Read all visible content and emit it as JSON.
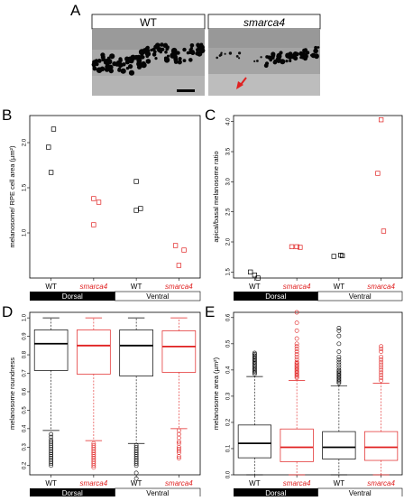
{
  "panel_labels": [
    "A",
    "B",
    "C",
    "D",
    "E"
  ],
  "panel_a": {
    "titles": [
      "WT",
      "smarca4"
    ],
    "wt_color": "#000000",
    "mutant_color": "#000000"
  },
  "group_bar": {
    "dorsal": "Dorsal",
    "ventral": "Ventral"
  },
  "colors": {
    "wt": "#000000",
    "mutant": "#e02020",
    "dorsal_bar": "#000000"
  },
  "chart_data": [
    {
      "panel": "B",
      "type": "scatter",
      "ylabel": "melanosome/ RPE cell area (µm²)",
      "ylim": [
        0.5,
        2.3
      ],
      "yticks": [
        1.0,
        1.5,
        2.0
      ],
      "ytick_labels": [
        "1.0",
        "1.5",
        "2.0"
      ],
      "categories": [
        "WT",
        "smarca4",
        "WT",
        "smarca4"
      ],
      "groups": [
        "Dorsal",
        "Ventral"
      ],
      "series": [
        {
          "category": "WT",
          "values": [
            1.95,
            2.15,
            1.67
          ],
          "offsets": [
            -0.03,
            0.03,
            0.0
          ]
        },
        {
          "category": "smarca4",
          "values": [
            1.38,
            1.34,
            1.09
          ],
          "offsets": [
            0.0,
            0.06,
            0.0
          ]
        },
        {
          "category": "WT",
          "values": [
            1.57,
            1.25,
            1.27
          ],
          "offsets": [
            0.0,
            0.0,
            0.05
          ]
        },
        {
          "category": "smarca4",
          "values": [
            0.86,
            0.81,
            0.64
          ],
          "offsets": [
            -0.04,
            0.06,
            0.0
          ]
        }
      ]
    },
    {
      "panel": "C",
      "type": "scatter",
      "ylabel": "apical/basal melanosome ratio",
      "ylim": [
        1.4,
        4.1
      ],
      "yticks": [
        1.5,
        2.0,
        2.5,
        3.0,
        3.5,
        4.0
      ],
      "ytick_labels": [
        "1.5",
        "2.0",
        "2.5",
        "3.0",
        "3.5",
        "4.0"
      ],
      "categories": [
        "WT",
        "smarca4",
        "WT",
        "smarca4"
      ],
      "groups": [
        "Dorsal",
        "Ventral"
      ],
      "series": [
        {
          "category": "WT",
          "values": [
            1.5,
            1.45,
            1.4
          ],
          "offsets": [
            -0.05,
            0.0,
            0.04
          ]
        },
        {
          "category": "smarca4",
          "values": [
            1.92,
            1.92,
            1.91
          ],
          "offsets": [
            -0.06,
            0.0,
            0.04
          ]
        },
        {
          "category": "WT",
          "values": [
            1.76,
            1.78,
            1.77
          ],
          "offsets": [
            -0.06,
            0.02,
            0.04
          ]
        },
        {
          "category": "smarca4",
          "values": [
            4.03,
            3.14,
            2.18
          ],
          "offsets": [
            0.0,
            -0.04,
            0.03
          ]
        }
      ]
    },
    {
      "panel": "D",
      "type": "boxplot",
      "ylabel": "melanosome roundness",
      "ylim": [
        0.15,
        1.03
      ],
      "yticks": [
        0.2,
        0.3,
        0.4,
        0.5,
        0.6,
        0.7,
        0.8,
        0.9,
        1.0
      ],
      "ytick_labels": [
        "0.2",
        "0.3",
        "0.4",
        "0.5",
        "0.6",
        "0.7",
        "0.8",
        "0.9",
        "1.0"
      ],
      "categories": [
        "WT",
        "smarca4",
        "WT",
        "smarca4"
      ],
      "groups": [
        "Dorsal",
        "Ventral"
      ],
      "boxes": [
        {
          "category": "WT",
          "whisker_low": 0.39,
          "q1": 0.715,
          "median": 0.86,
          "q3": 0.935,
          "whisker_high": 1.0,
          "outliers": [
            0.37,
            0.355,
            0.34,
            0.33,
            0.32,
            0.31,
            0.3,
            0.29,
            0.28,
            0.27,
            0.26,
            0.25,
            0.24,
            0.23,
            0.22,
            0.21,
            0.2
          ]
        },
        {
          "category": "smarca4",
          "whisker_low": 0.335,
          "q1": 0.695,
          "median": 0.85,
          "q3": 0.935,
          "whisker_high": 1.0,
          "outliers": [
            0.32,
            0.31,
            0.3,
            0.29,
            0.28,
            0.27,
            0.26,
            0.25,
            0.24,
            0.23,
            0.22,
            0.21,
            0.2,
            0.19
          ]
        },
        {
          "category": "WT",
          "whisker_low": 0.32,
          "q1": 0.685,
          "median": 0.85,
          "q3": 0.935,
          "whisker_high": 1.0,
          "outliers": [
            0.31,
            0.3,
            0.29,
            0.28,
            0.27,
            0.26,
            0.25,
            0.24,
            0.23,
            0.22,
            0.21,
            0.2,
            0.16,
            0.13
          ]
        },
        {
          "category": "smarca4",
          "whisker_low": 0.4,
          "q1": 0.705,
          "median": 0.845,
          "q3": 0.93,
          "whisker_high": 1.0,
          "outliers": [
            0.39,
            0.37,
            0.35,
            0.33,
            0.32,
            0.3,
            0.29,
            0.28,
            0.27,
            0.25,
            0.24
          ]
        }
      ]
    },
    {
      "panel": "E",
      "type": "boxplot",
      "ylabel": "melanosome area (µm²)",
      "ylim": [
        0.0,
        0.62
      ],
      "yticks": [
        0.0,
        0.1,
        0.2,
        0.3,
        0.4,
        0.5,
        0.6
      ],
      "ytick_labels": [
        "0.0",
        "0.1",
        "0.2",
        "0.3",
        "0.4",
        "0.5",
        "0.6"
      ],
      "categories": [
        "WT",
        "smarca4",
        "WT",
        "smarca4"
      ],
      "groups": [
        "Dorsal",
        "Ventral"
      ],
      "boxes": [
        {
          "category": "WT",
          "whisker_low": 0.0,
          "q1": 0.065,
          "median": 0.12,
          "q3": 0.19,
          "whisker_high": 0.375,
          "outliers": [
            0.385,
            0.39,
            0.395,
            0.4,
            0.405,
            0.41,
            0.415,
            0.42,
            0.425,
            0.43,
            0.435,
            0.44,
            0.445,
            0.45,
            0.455,
            0.46,
            0.465
          ]
        },
        {
          "category": "smarca4",
          "whisker_low": 0.0,
          "q1": 0.05,
          "median": 0.105,
          "q3": 0.175,
          "whisker_high": 0.36,
          "outliers": [
            0.37,
            0.375,
            0.38,
            0.385,
            0.39,
            0.395,
            0.4,
            0.405,
            0.41,
            0.415,
            0.42,
            0.425,
            0.43,
            0.44,
            0.45,
            0.46,
            0.47,
            0.48,
            0.49,
            0.5,
            0.52,
            0.55,
            0.58,
            0.62
          ]
        },
        {
          "category": "WT",
          "whisker_low": 0.0,
          "q1": 0.06,
          "median": 0.105,
          "q3": 0.165,
          "whisker_high": 0.34,
          "outliers": [
            0.35,
            0.355,
            0.36,
            0.365,
            0.37,
            0.375,
            0.38,
            0.385,
            0.39,
            0.395,
            0.4,
            0.41,
            0.42,
            0.43,
            0.44,
            0.45,
            0.47,
            0.5,
            0.53,
            0.55,
            0.56
          ]
        },
        {
          "category": "smarca4",
          "whisker_low": 0.0,
          "q1": 0.055,
          "median": 0.105,
          "q3": 0.165,
          "whisker_high": 0.35,
          "outliers": [
            0.36,
            0.37,
            0.38,
            0.39,
            0.4,
            0.41,
            0.42,
            0.43,
            0.44,
            0.45,
            0.47,
            0.48,
            0.49
          ]
        }
      ]
    }
  ]
}
